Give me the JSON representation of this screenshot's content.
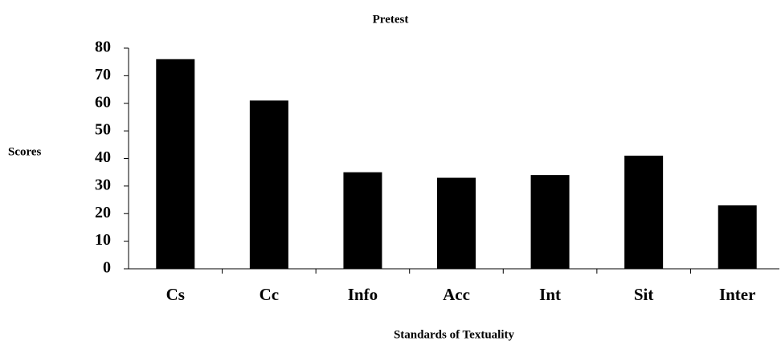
{
  "chart_data": {
    "type": "bar",
    "title": "Pretest",
    "x_label": "Standards of Textuality",
    "y_label": "Scores",
    "categories": [
      "Cs",
      "Cc",
      "Info",
      "Acc",
      "Int",
      "Sit",
      "Inter"
    ],
    "values": [
      76,
      61,
      35,
      33,
      34,
      41,
      23
    ],
    "color": "#000000",
    "ylim": [
      0,
      80
    ],
    "yticks": [
      0,
      10,
      20,
      30,
      40,
      50,
      60,
      70,
      80
    ],
    "grid": false
  }
}
